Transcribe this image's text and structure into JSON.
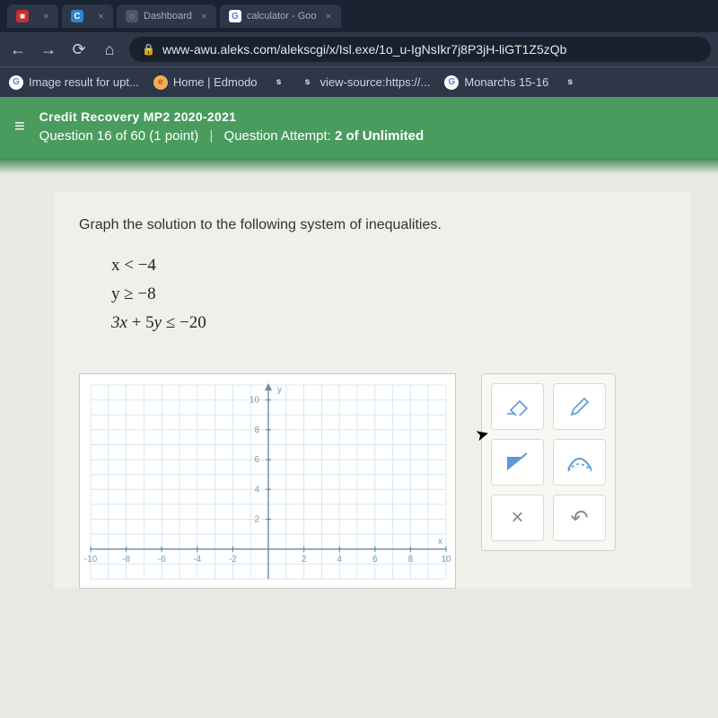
{
  "browser": {
    "tabs": [
      {
        "icon_bg": "#c53030",
        "icon_fg": "#ffffff",
        "icon_text": "■",
        "label": "",
        "close": "×"
      },
      {
        "icon_bg": "#3182ce",
        "icon_fg": "#ffffff",
        "icon_text": "C",
        "label": "",
        "close": "×"
      },
      {
        "icon_bg": "#4a5568",
        "icon_fg": "#e2e8f0",
        "icon_text": "◌",
        "label": "Dashboard",
        "close": "×"
      },
      {
        "icon_bg": "#ffffff",
        "icon_fg": "#4285f4",
        "icon_text": "G",
        "label": "calculator - Goo",
        "close": "×"
      }
    ],
    "nav": {
      "back": "←",
      "forward": "→",
      "reload": "⟳",
      "home": "⌂"
    },
    "lock": "🔒",
    "url": "www-awu.aleks.com/alekscgi/x/Isl.exe/1o_u-IgNsIkr7j8P3jH-liGT1Z5zQb",
    "bookmarks": [
      {
        "icon_bg": "#ffffff",
        "icon_fg": "#4285f4",
        "icon_text": "G",
        "label": "Image result for upt..."
      },
      {
        "icon_bg": "#f6ad55",
        "icon_fg": "#c05621",
        "icon_text": "e",
        "label": "Home | Edmodo"
      },
      {
        "icon_bg": "#2d3748",
        "icon_fg": "#e2e8f0",
        "icon_text": "s",
        "label": ""
      },
      {
        "icon_bg": "#2d3748",
        "icon_fg": "#e2e8f0",
        "icon_text": "s",
        "label": "view-source:https://..."
      },
      {
        "icon_bg": "#ffffff",
        "icon_fg": "#4285f4",
        "icon_text": "G",
        "label": "Monarchs 15-16"
      },
      {
        "icon_bg": "#2d3748",
        "icon_fg": "#e2e8f0",
        "icon_text": "s",
        "label": ""
      }
    ]
  },
  "aleks": {
    "hamburger": "≡",
    "course": "Credit Recovery MP2 2020-2021",
    "question_of": "Question 16 of 60",
    "points": "(1 point)",
    "divider": "|",
    "attempt_label": "Question Attempt:",
    "attempt_value": "2 of Unlimited",
    "header_bg": "#4a9b5e"
  },
  "problem": {
    "prompt": "Graph the solution to the following system of inequalities.",
    "ineq1": "x < −4",
    "ineq2": "y ≥ −8",
    "ineq3": "3x + 5y ≤ −20"
  },
  "graph": {
    "type": "cartesian-grid",
    "xlim": [
      -10,
      10
    ],
    "ylim": [
      -2,
      11
    ],
    "xtick_step": 2,
    "ytick_step": 2,
    "grid_color": "#d4e8f4",
    "axis_color": "#6a8ba5",
    "tick_color": "#6a8ba5",
    "label_color": "#7a9ab2",
    "label_fontsize": 10,
    "xlabel": "x",
    "ylabel": "y",
    "background_color": "#ffffff",
    "x_ticks_shown": [
      -10,
      -8,
      -6,
      -4,
      -2,
      2,
      4,
      6,
      8,
      10
    ],
    "y_ticks_shown": [
      2,
      4,
      6,
      8,
      10
    ]
  },
  "tools": {
    "eraser": "eraser",
    "pencil": "pencil",
    "fill": "fill",
    "line_style": "line-style",
    "clear": "×",
    "undo": "↶"
  }
}
